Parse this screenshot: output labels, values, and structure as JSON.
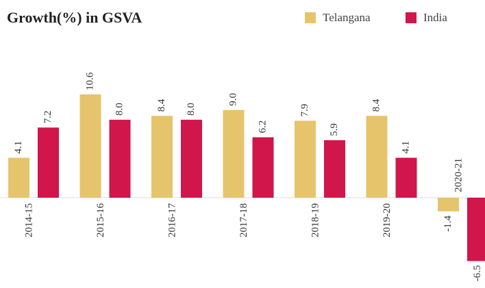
{
  "chart_data": {
    "type": "bar",
    "title": "Growth(%) in GSVA",
    "categories": [
      "2014-15",
      "2015-16",
      "2016-17",
      "2017-18",
      "2018-19",
      "2019-20",
      "2020-21"
    ],
    "series": [
      {
        "name": "Telangana",
        "color": "#e6c46c",
        "values": [
          4.1,
          10.6,
          8.4,
          9.0,
          7.9,
          8.4,
          -1.4
        ],
        "value_labels": [
          "4.1",
          "10.6",
          "8.4",
          "9.0",
          "7.9",
          "8.4",
          "-1.4"
        ]
      },
      {
        "name": "India",
        "color": "#d0164a",
        "values": [
          7.2,
          8.0,
          8.0,
          6.2,
          5.9,
          4.1,
          -6.5
        ],
        "value_labels": [
          "7.2",
          "8.0",
          "8.0",
          "6.2",
          "5.9",
          "4.1",
          "-6.5"
        ]
      }
    ],
    "legend": "top-right"
  }
}
